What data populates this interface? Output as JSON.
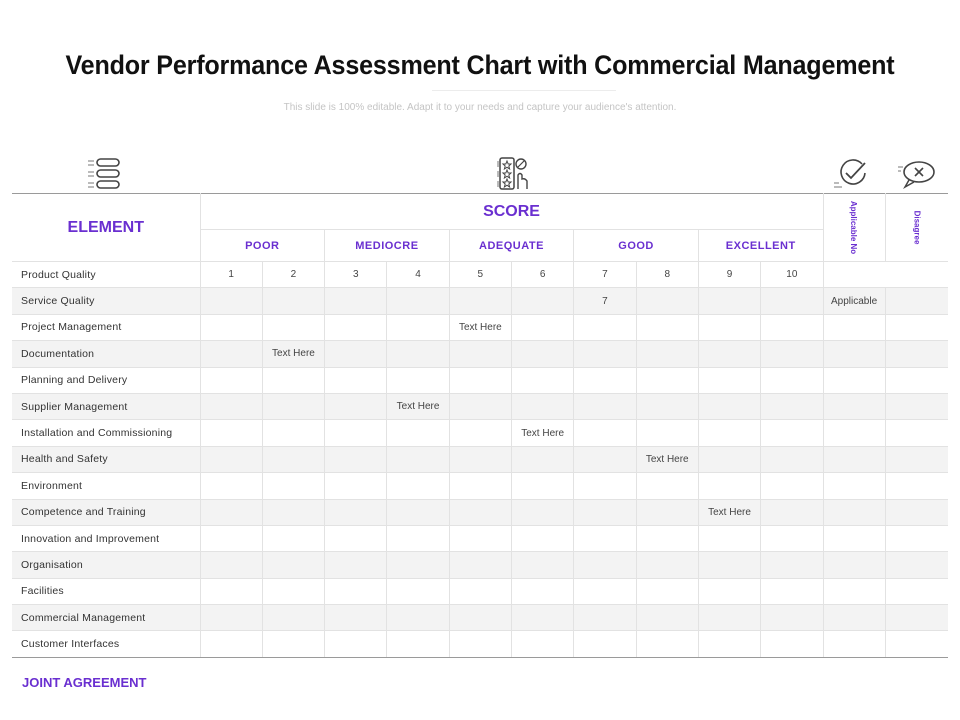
{
  "title": "Vendor Performance Assessment Chart with Commercial Management",
  "subtitle": "This slide is 100% editable. Adapt it to your needs and capture your audience's attention.",
  "icons": [
    "list-icon",
    "rating-stars-icon",
    "checkmark-icon",
    "close-bubble-icon"
  ],
  "table": {
    "element_header": "ELEMENT",
    "score_header": "SCORE",
    "applicable_header": "Applicable No",
    "disagree_header": "Disagree",
    "levels": [
      "POOR",
      "MEDIOCRE",
      "ADEQUATE",
      "GOOD",
      "EXCELLENT"
    ],
    "rows": [
      {
        "label": "Product Quality",
        "cells": [
          "1",
          "2",
          "3",
          "4",
          "5",
          "6",
          "7",
          "8",
          "9",
          "10",
          "",
          ""
        ]
      },
      {
        "label": "Service Quality",
        "cells": [
          "",
          "",
          "",
          "",
          "",
          "",
          "7",
          "",
          "",
          "",
          "Applicable",
          ""
        ]
      },
      {
        "label": "Project Management",
        "cells": [
          "",
          "",
          "",
          "",
          "Text Here",
          "",
          "",
          "",
          "",
          "",
          "",
          ""
        ]
      },
      {
        "label": "Documentation",
        "cells": [
          "",
          "Text Here",
          "",
          "",
          "",
          "",
          "",
          "",
          "",
          "",
          "",
          ""
        ]
      },
      {
        "label": "Planning and Delivery",
        "cells": [
          "",
          "",
          "",
          "",
          "",
          "",
          "",
          "",
          "",
          "",
          "",
          ""
        ]
      },
      {
        "label": "Supplier Management",
        "cells": [
          "",
          "",
          "",
          "Text Here",
          "",
          "",
          "",
          "",
          "",
          "",
          "",
          ""
        ]
      },
      {
        "label": "Installation and Commissioning",
        "cells": [
          "",
          "",
          "",
          "",
          "",
          "Text Here",
          "",
          "",
          "",
          "",
          "",
          ""
        ]
      },
      {
        "label": "Health and Safety",
        "cells": [
          "",
          "",
          "",
          "",
          "",
          "",
          "",
          "Text Here",
          "",
          "",
          "",
          ""
        ]
      },
      {
        "label": "Environment",
        "cells": [
          "",
          "",
          "",
          "",
          "",
          "",
          "",
          "",
          "",
          "",
          "",
          ""
        ]
      },
      {
        "label": "Competence and Training",
        "cells": [
          "",
          "",
          "",
          "",
          "",
          "",
          "",
          "",
          "Text Here",
          "",
          "",
          ""
        ]
      },
      {
        "label": "Innovation and Improvement",
        "cells": [
          "",
          "",
          "",
          "",
          "",
          "",
          "",
          "",
          "",
          "",
          "",
          ""
        ]
      },
      {
        "label": "Organisation",
        "cells": [
          "",
          "",
          "",
          "",
          "",
          "",
          "",
          "",
          "",
          "",
          "",
          ""
        ]
      },
      {
        "label": "Facilities",
        "cells": [
          "",
          "",
          "",
          "",
          "",
          "",
          "",
          "",
          "",
          "",
          "",
          ""
        ]
      },
      {
        "label": "Commercial Management",
        "cells": [
          "",
          "",
          "",
          "",
          "",
          "",
          "",
          "",
          "",
          "",
          "",
          ""
        ]
      },
      {
        "label": "Customer Interfaces",
        "cells": [
          "",
          "",
          "",
          "",
          "",
          "",
          "",
          "",
          "",
          "",
          "",
          ""
        ]
      }
    ]
  },
  "footer": "JOINT AGREEMENT",
  "colors": {
    "accent": "#6a2fd0",
    "stripe": "#f3f3f3",
    "grid": "#e2e2e2"
  }
}
